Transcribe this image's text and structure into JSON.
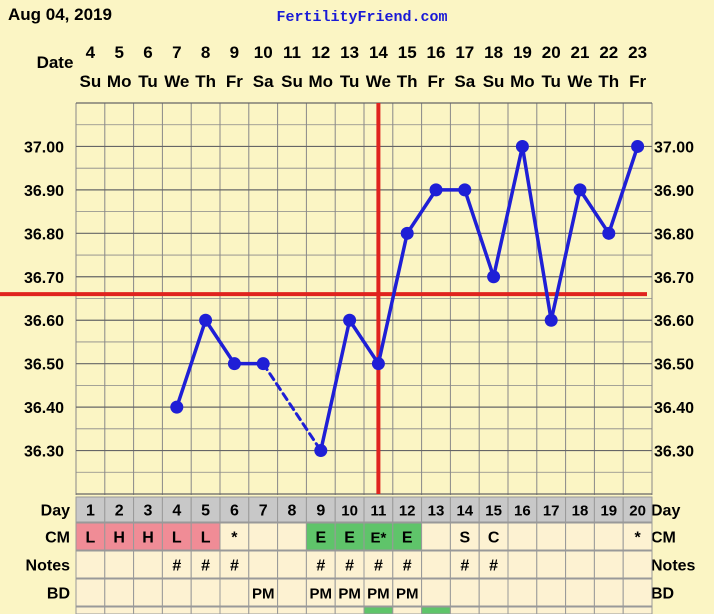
{
  "header": {
    "date_label": "Aug 04, 2019",
    "site_name": "FertilityFriend.com"
  },
  "row_labels": {
    "date": "Date",
    "day": "Day",
    "cm": "CM",
    "notes": "Notes",
    "bd": "BD"
  },
  "colors": {
    "background": "#fbf5c4",
    "grid": "#888888",
    "line": "#1f1fd6",
    "coverline": "#e0231e",
    "cm_pink": "#f08c96",
    "cm_green": "#5fc46a",
    "day_row": "#c8c8c8",
    "row_cell": "#fdf2d2"
  },
  "chart_data": {
    "type": "line",
    "title": "",
    "xlabel": "Date",
    "ylabel": "",
    "ylim": [
      36.2,
      37.1
    ],
    "y_ticks": [
      "37.00",
      "36.90",
      "36.80",
      "36.70",
      "36.60",
      "36.50",
      "36.40",
      "36.30"
    ],
    "dates": [
      "4",
      "5",
      "6",
      "7",
      "8",
      "9",
      "10",
      "11",
      "12",
      "13",
      "14",
      "15",
      "16",
      "17",
      "18",
      "19",
      "20",
      "21",
      "22",
      "23"
    ],
    "weekdays": [
      "Su",
      "Mo",
      "Tu",
      "We",
      "Th",
      "Fr",
      "Sa",
      "Su",
      "Mo",
      "Tu",
      "We",
      "Th",
      "Fr",
      "Sa",
      "Su",
      "Mo",
      "Tu",
      "We",
      "Th",
      "Fr"
    ],
    "cycle_days": [
      "1",
      "2",
      "3",
      "4",
      "5",
      "6",
      "7",
      "8",
      "9",
      "10",
      "11",
      "12",
      "13",
      "14",
      "15",
      "16",
      "17",
      "18",
      "19",
      "20"
    ],
    "temperatures": [
      null,
      null,
      null,
      36.4,
      36.6,
      36.5,
      36.5,
      null,
      36.3,
      36.6,
      36.5,
      36.8,
      36.9,
      36.9,
      36.7,
      37.0,
      36.6,
      36.9,
      36.8,
      37.0
    ],
    "dashed_segments": [
      [
        6,
        8
      ]
    ],
    "coverline": 36.66,
    "ovulation_day": "11",
    "cm": [
      "L",
      "H",
      "H",
      "L",
      "L",
      "*",
      "",
      "",
      "E",
      "E",
      "E*",
      "E",
      "",
      "S",
      "C",
      "",
      "",
      "",
      "",
      "*"
    ],
    "cm_colors": [
      "pink",
      "pink",
      "pink",
      "pink",
      "pink",
      "",
      "",
      "",
      "green",
      "green",
      "green",
      "green",
      "",
      "",
      "",
      "",
      "",
      "",
      "",
      ""
    ],
    "notes": [
      "",
      "",
      "",
      "#",
      "#",
      "#",
      "",
      "",
      "#",
      "#",
      "#",
      "#",
      "",
      "#",
      "#",
      "",
      "",
      "",
      "",
      ""
    ],
    "bd": [
      "",
      "",
      "",
      "",
      "",
      "",
      "PM",
      "",
      "PM",
      "PM",
      "PM",
      "PM",
      "",
      "",
      "",
      "",
      "",
      "",
      "",
      ""
    ]
  }
}
